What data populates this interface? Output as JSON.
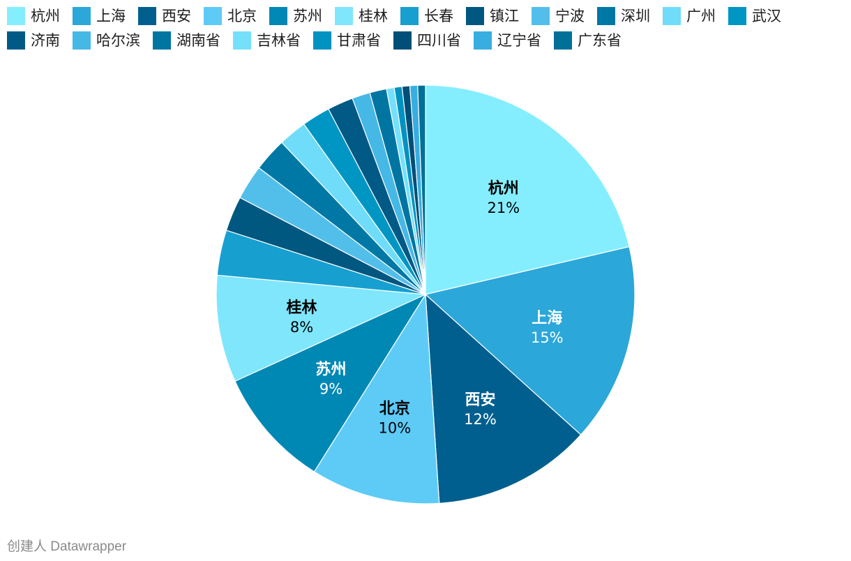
{
  "chart_data": {
    "type": "pie",
    "title": "",
    "categories": [
      "杭州",
      "上海",
      "西安",
      "北京",
      "苏州",
      "桂林",
      "长春",
      "镇江",
      "宁波",
      "深圳",
      "广州",
      "武汉",
      "济南",
      "哈尔滨",
      "湖南省",
      "吉林省",
      "甘肃省",
      "四川省",
      "辽宁省",
      "广东省"
    ],
    "values": [
      21.4,
      15.4,
      12.3,
      10.0,
      9.3,
      8.3,
      3.5,
      2.7,
      2.7,
      2.6,
      2.2,
      2.2,
      2.0,
      1.4,
      1.3,
      0.6,
      0.6,
      0.6,
      0.6,
      0.6
    ],
    "labels": [
      {
        "index": 0,
        "name": "杭州",
        "pct": "21%",
        "text_color": "#000000"
      },
      {
        "index": 1,
        "name": "上海",
        "pct": "15%",
        "text_color": "#ffffff"
      },
      {
        "index": 2,
        "name": "西安",
        "pct": "12%",
        "text_color": "#ffffff"
      },
      {
        "index": 3,
        "name": "北京",
        "pct": "10%",
        "text_color": "#000000"
      },
      {
        "index": 4,
        "name": "苏州",
        "pct": "9%",
        "text_color": "#ffffff"
      },
      {
        "index": 5,
        "name": "桂林",
        "pct": "8%",
        "text_color": "#000000"
      }
    ],
    "colors": [
      "#85eefe",
      "#2ba7d9",
      "#005f8e",
      "#5ecbf7",
      "#0088b5",
      "#7fe6fc",
      "#17a0cf",
      "#00577f",
      "#52bfea",
      "#0078a5",
      "#6fdcf9",
      "#0096c4",
      "#005a85",
      "#46b8e6",
      "#0075a2",
      "#75e0fb",
      "#0092c0",
      "#004f78",
      "#38aee0",
      "#007099"
    ],
    "start_angle_deg": 0,
    "direction": "clockwise",
    "legend_position": "top"
  },
  "footer": {
    "credit": "创建人 Datawrapper"
  }
}
